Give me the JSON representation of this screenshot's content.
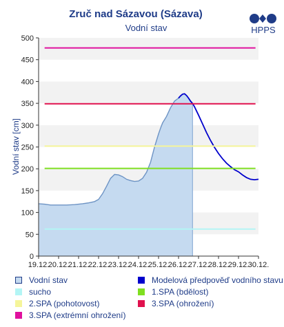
{
  "logo_text": "HPPS",
  "chart_data": {
    "type": "area",
    "title": "Zruč nad Sázavou (Sázava)",
    "subtitle": "Vodní stav",
    "ylabel": "Vodní stav [cm]",
    "xlabel": "",
    "ylim": [
      0,
      500
    ],
    "xlim": [
      0,
      11
    ],
    "yticks": [
      0,
      50,
      100,
      150,
      200,
      250,
      300,
      350,
      400,
      450,
      500
    ],
    "xticks": [
      "19.12.",
      "20.12.",
      "21.12.",
      "22.12.",
      "23.12.",
      "24.12.",
      "25.12.",
      "26.12.",
      "27.12.",
      "28.12.",
      "29.12.",
      "30.12."
    ],
    "grid": "horizontal bands",
    "series": [
      {
        "name": "Vodní stav",
        "kind": "area",
        "color": "#c5daf0",
        "x": [
          0.0,
          0.3,
          0.6,
          1.0,
          1.4,
          1.8,
          2.2,
          2.5,
          2.8,
          3.0,
          3.2,
          3.4,
          3.6,
          3.8,
          4.0,
          4.2,
          4.4,
          4.6,
          4.8,
          5.0,
          5.2,
          5.4,
          5.6,
          5.8,
          6.0,
          6.1,
          6.2,
          6.4,
          6.6,
          6.8,
          7.0,
          7.1,
          7.2,
          7.3,
          7.4,
          7.5,
          7.6,
          7.7
        ],
        "y": [
          120,
          119,
          117,
          117,
          117,
          118,
          120,
          122,
          125,
          130,
          143,
          160,
          178,
          187,
          186,
          182,
          176,
          173,
          171,
          172,
          178,
          192,
          215,
          250,
          280,
          293,
          305,
          320,
          340,
          355,
          362,
          367,
          371,
          372,
          368,
          362,
          355,
          350
        ]
      },
      {
        "name": "Modelová předpověď vodního stavu",
        "kind": "line",
        "color": "#0000cc",
        "x": [
          7.0,
          7.1,
          7.2,
          7.3,
          7.4,
          7.5,
          7.6,
          7.7,
          7.8,
          8.0,
          8.2,
          8.4,
          8.6,
          8.8,
          9.0,
          9.2,
          9.4,
          9.6,
          9.8,
          10.0,
          10.2,
          10.4,
          10.6,
          10.8,
          11.0
        ],
        "y": [
          362,
          367,
          371,
          372,
          368,
          362,
          355,
          350,
          342,
          323,
          303,
          283,
          265,
          249,
          235,
          223,
          213,
          205,
          198,
          193,
          186,
          180,
          176,
          175,
          176
        ]
      }
    ],
    "thresholds": [
      {
        "name": "sucho",
        "value": 62,
        "color": "#b3f5f5"
      },
      {
        "name": "1.SPA (bdělost)",
        "value": 201,
        "color": "#7fdf20"
      },
      {
        "name": "2.SPA (pohotovost)",
        "value": 252,
        "color": "#f5f59a"
      },
      {
        "name": "3.SPA (ohrožení)",
        "value": 349,
        "color": "#e0114e"
      },
      {
        "name": "3.SPA (extrémní ohrožení)",
        "value": 477,
        "color": "#e0119e"
      }
    ],
    "legend": [
      {
        "label": "Vodní stav",
        "color": "#c5daf0",
        "border": "#1f3c88"
      },
      {
        "label": "Modelová předpověď vodního stavu",
        "color": "#0000cc",
        "border": "#0000cc"
      },
      {
        "label": "sucho",
        "color": "#b3f5f5",
        "border": "#b3f5f5"
      },
      {
        "label": "1.SPA (bdělost)",
        "color": "#7fdf20",
        "border": "#7fdf20"
      },
      {
        "label": "2.SPA (pohotovost)",
        "color": "#f5f59a",
        "border": "#f5f59a"
      },
      {
        "label": "3.SPA (ohrožení)",
        "color": "#e0114e",
        "border": "#e0114e"
      },
      {
        "label": "3.SPA (extrémní ohrožení)",
        "color": "#e0119e",
        "border": "#e0119e"
      }
    ]
  }
}
